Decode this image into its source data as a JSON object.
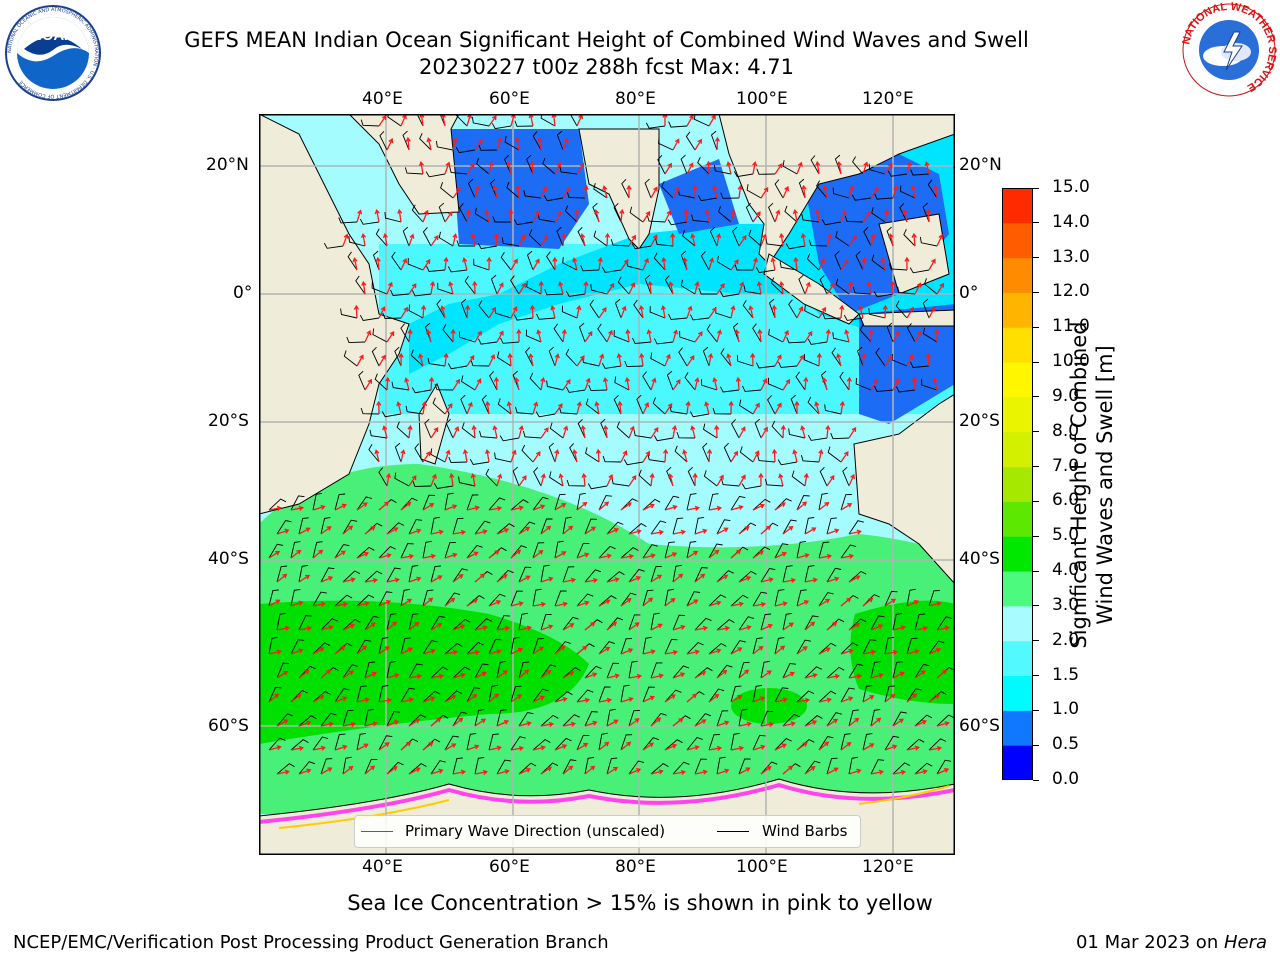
{
  "header": {
    "title_line1": "GEFS MEAN Indian Ocean Significant Height of Combined Wind Waves and Swell",
    "title_line2": "20230227 t00z 288h fcst   Max: 4.71",
    "noaa_logo_text": "NOAA",
    "noaa_ring_text": "NATIONAL OCEANIC AND ATMOSPHERIC ADMINISTRATION · U.S. DEPARTMENT OF COMMERCE",
    "nws_ring_text": "NATIONAL WEATHER SERVICE"
  },
  "map": {
    "top_lon_labels": [
      "40°E",
      "60°E",
      "80°E",
      "100°E",
      "120°E"
    ],
    "bottom_lon_labels": [
      "40°E",
      "60°E",
      "80°E",
      "100°E",
      "120°E"
    ],
    "left_lat_labels": [
      "20°N",
      "0°",
      "20°S",
      "40°S",
      "60°S"
    ],
    "right_lat_labels": [
      "20°N",
      "0°",
      "20°S",
      "40°S",
      "60°S"
    ],
    "colors": {
      "land": "#efedd9",
      "band_05_1": "#1c6cf5",
      "band_1_15": "#00e5ff",
      "band_15_2": "#4cf8ff",
      "band_2_3": "#a4fcff",
      "band_3_4": "#48f078",
      "band_4_5": "#00e000",
      "ice": "#ff44ee",
      "wave_arrow": "#ff1a1a",
      "wind_barb": "#000000"
    }
  },
  "legend": {
    "wave_label": "Primary Wave Direction (unscaled)",
    "barb_label": "Wind Barbs"
  },
  "colorbar": {
    "label_line1": "Significant Height of Combined",
    "label_line2": "Wind Waves and Swell [m]",
    "ticks": [
      "0.0",
      "0.5",
      "1.0",
      "1.5",
      "2.0",
      "3.0",
      "4.0",
      "5.0",
      "6.0",
      "7.0",
      "8.0",
      "9.0",
      "10.0",
      "11.0",
      "12.0",
      "13.0",
      "14.0",
      "15.0"
    ],
    "colors": [
      "#0000ff",
      "#0f78ff",
      "#00fbff",
      "#52faff",
      "#a8fcff",
      "#4cfb7e",
      "#00e800",
      "#5ce800",
      "#a6e800",
      "#d2f000",
      "#eaf400",
      "#fff700",
      "#ffdf00",
      "#ffb500",
      "#ff8c00",
      "#ff5c00",
      "#ff2a00"
    ]
  },
  "footer": {
    "caption": "Sea Ice Concentration > 15% is shown in pink to yellow",
    "left": "NCEP/EMC/Verification Post Processing Product Generation Branch",
    "right_date": "01 Mar 2023 on ",
    "right_machine": "Hera"
  }
}
